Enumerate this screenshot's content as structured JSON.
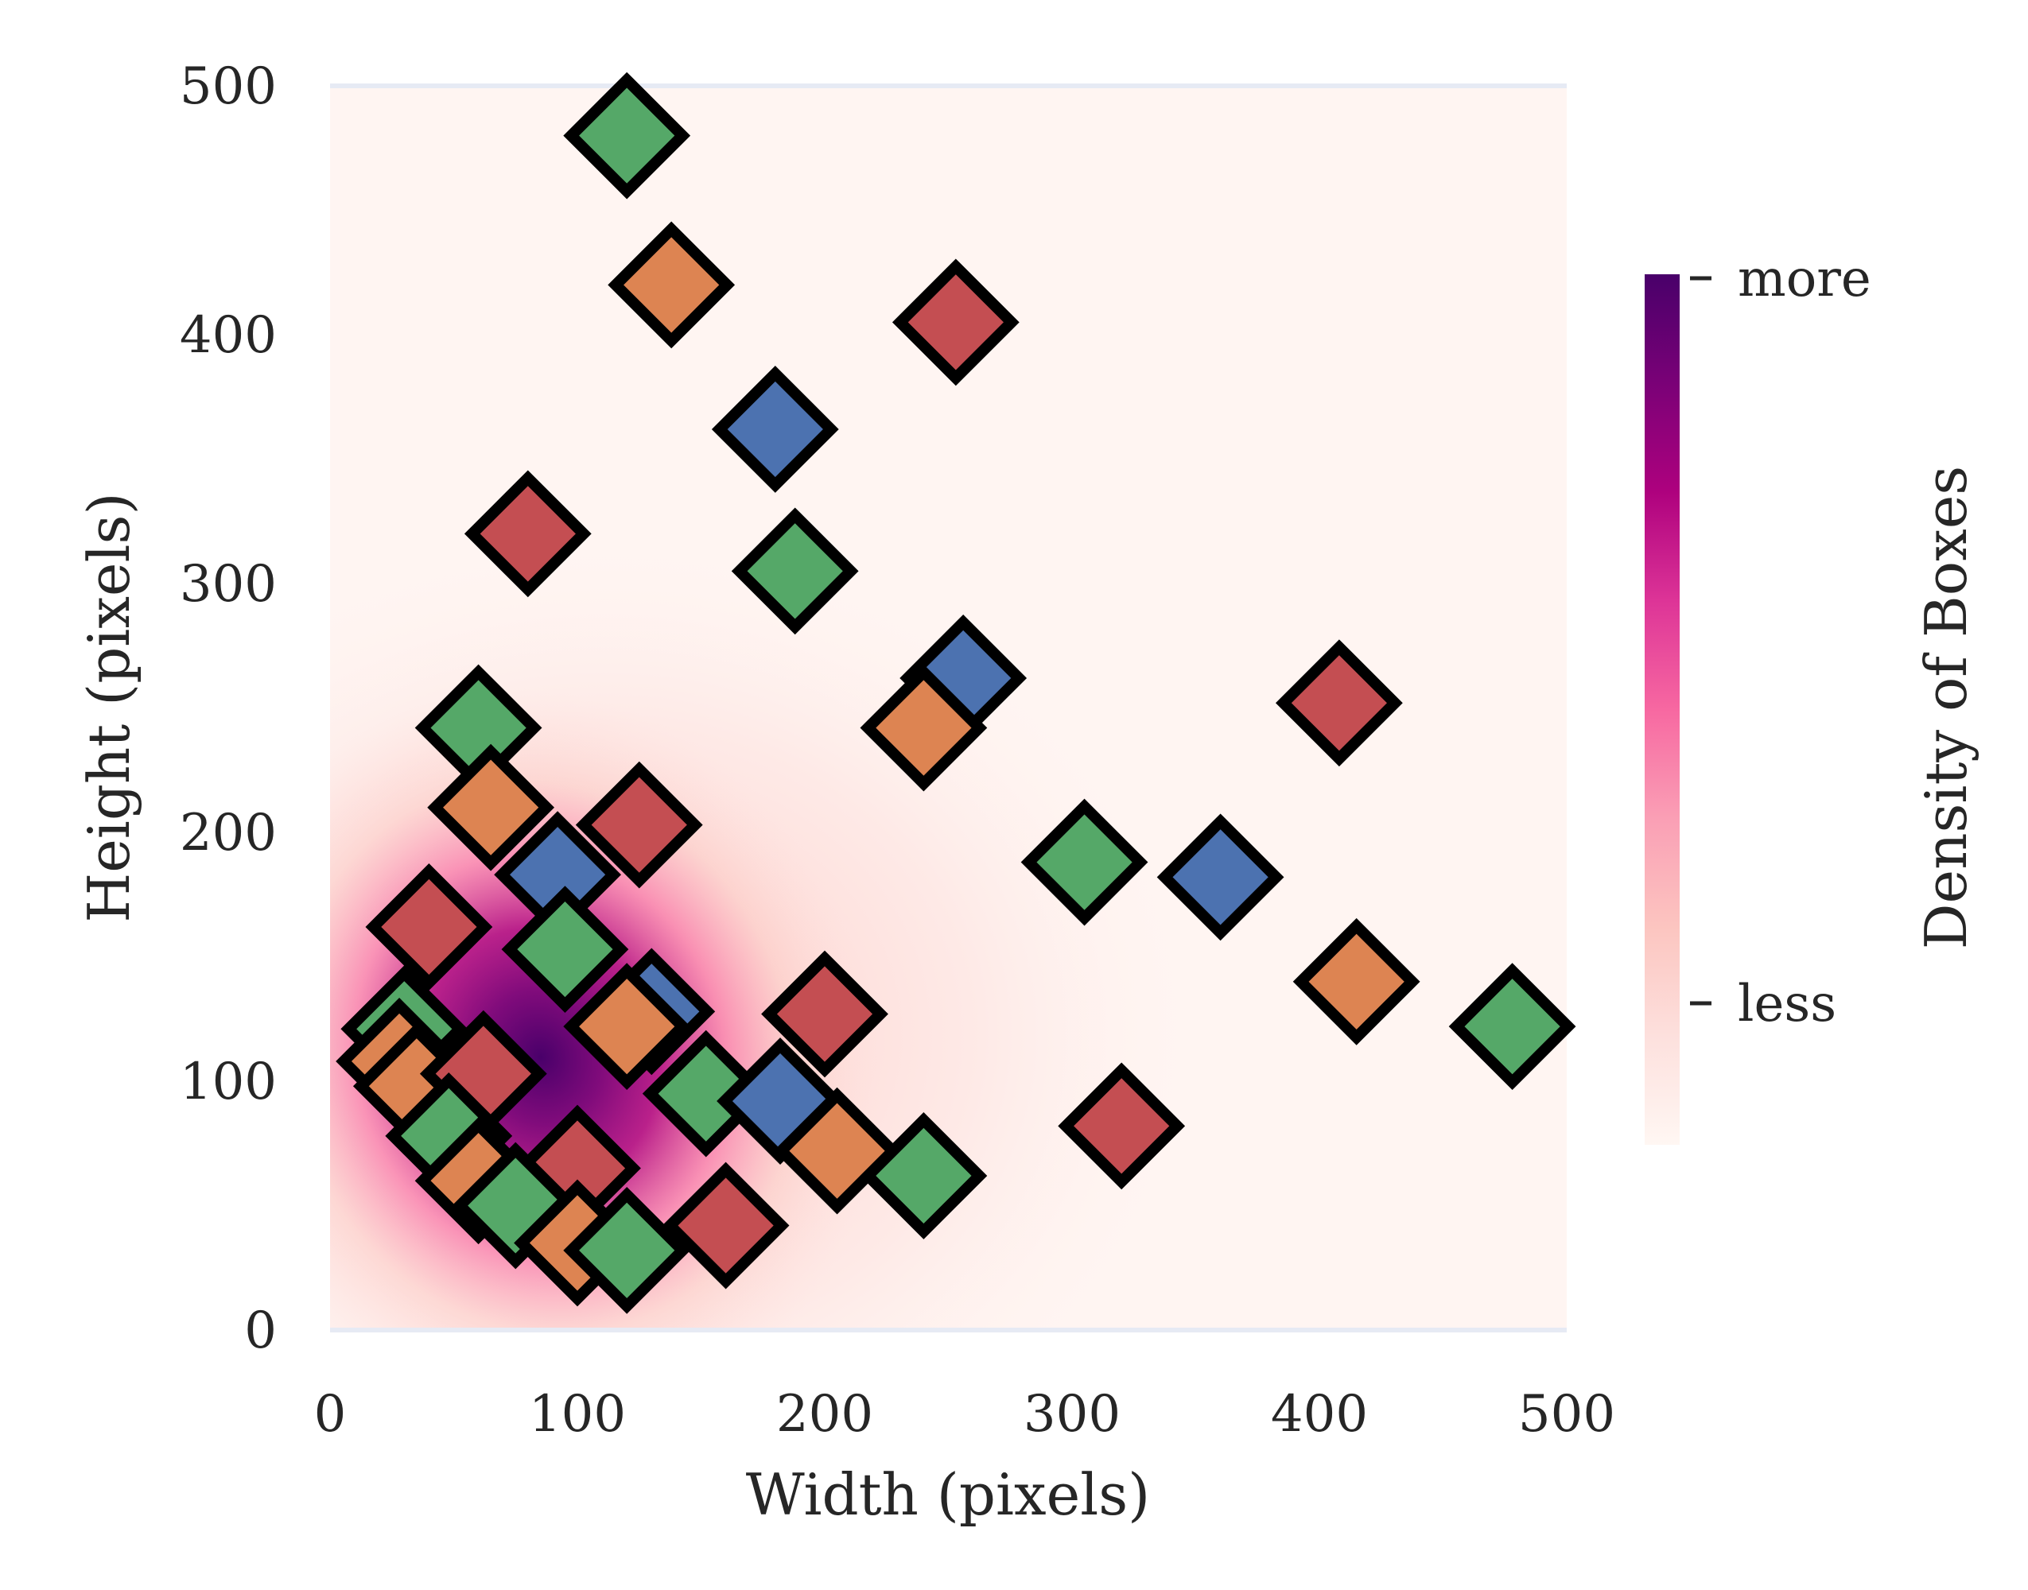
{
  "chart_data": {
    "type": "scatter",
    "background": "density heatmap (KDE) of box sizes",
    "xlabel": "Width (pixels)",
    "ylabel": "Height (pixels)",
    "xlim": [
      0,
      500
    ],
    "ylim": [
      0,
      500
    ],
    "xticks": [
      "0",
      "100",
      "200",
      "300",
      "400",
      "500"
    ],
    "yticks": [
      "0",
      "100",
      "200",
      "300",
      "400",
      "500"
    ],
    "marker": "diamond",
    "marker_edge_color": "#000000",
    "colorbar": {
      "label": "Density of Boxes",
      "tick_labels": [
        "more",
        "less"
      ],
      "colormap": "RdPu",
      "colors": [
        "#fff7f3",
        "#fde0dd",
        "#fcc5c0",
        "#fa9fb5",
        "#f768a1",
        "#dd3497",
        "#ae017e",
        "#7a0177",
        "#49006a"
      ]
    },
    "series_colors": {
      "blue": "#4c72b0",
      "orange": "#dd8452",
      "green": "#55a868",
      "red": "#c44e52"
    },
    "points": [
      {
        "x": 120,
        "y": 480,
        "color": "green"
      },
      {
        "x": 138,
        "y": 420,
        "color": "orange"
      },
      {
        "x": 253,
        "y": 405,
        "color": "red"
      },
      {
        "x": 180,
        "y": 362,
        "color": "blue"
      },
      {
        "x": 80,
        "y": 320,
        "color": "red"
      },
      {
        "x": 188,
        "y": 305,
        "color": "green"
      },
      {
        "x": 256,
        "y": 262,
        "color": "blue"
      },
      {
        "x": 240,
        "y": 242,
        "color": "orange"
      },
      {
        "x": 408,
        "y": 252,
        "color": "red"
      },
      {
        "x": 60,
        "y": 242,
        "color": "green"
      },
      {
        "x": 65,
        "y": 210,
        "color": "orange"
      },
      {
        "x": 125,
        "y": 203,
        "color": "red"
      },
      {
        "x": 92,
        "y": 183,
        "color": "blue"
      },
      {
        "x": 305,
        "y": 188,
        "color": "green"
      },
      {
        "x": 360,
        "y": 182,
        "color": "blue"
      },
      {
        "x": 40,
        "y": 162,
        "color": "red"
      },
      {
        "x": 95,
        "y": 153,
        "color": "green"
      },
      {
        "x": 415,
        "y": 140,
        "color": "orange"
      },
      {
        "x": 130,
        "y": 128,
        "color": "blue"
      },
      {
        "x": 200,
        "y": 127,
        "color": "red"
      },
      {
        "x": 120,
        "y": 122,
        "color": "orange"
      },
      {
        "x": 478,
        "y": 122,
        "color": "green"
      },
      {
        "x": 30,
        "y": 121,
        "color": "green"
      },
      {
        "x": 28,
        "y": 108,
        "color": "orange"
      },
      {
        "x": 35,
        "y": 98,
        "color": "orange"
      },
      {
        "x": 62,
        "y": 103,
        "color": "red"
      },
      {
        "x": 152,
        "y": 95,
        "color": "green"
      },
      {
        "x": 182,
        "y": 92,
        "color": "blue"
      },
      {
        "x": 320,
        "y": 82,
        "color": "red"
      },
      {
        "x": 48,
        "y": 78,
        "color": "green"
      },
      {
        "x": 205,
        "y": 72,
        "color": "orange"
      },
      {
        "x": 60,
        "y": 60,
        "color": "orange"
      },
      {
        "x": 100,
        "y": 65,
        "color": "red"
      },
      {
        "x": 240,
        "y": 62,
        "color": "green"
      },
      {
        "x": 75,
        "y": 50,
        "color": "green"
      },
      {
        "x": 160,
        "y": 42,
        "color": "red"
      },
      {
        "x": 100,
        "y": 35,
        "color": "orange"
      },
      {
        "x": 120,
        "y": 32,
        "color": "green"
      }
    ]
  }
}
